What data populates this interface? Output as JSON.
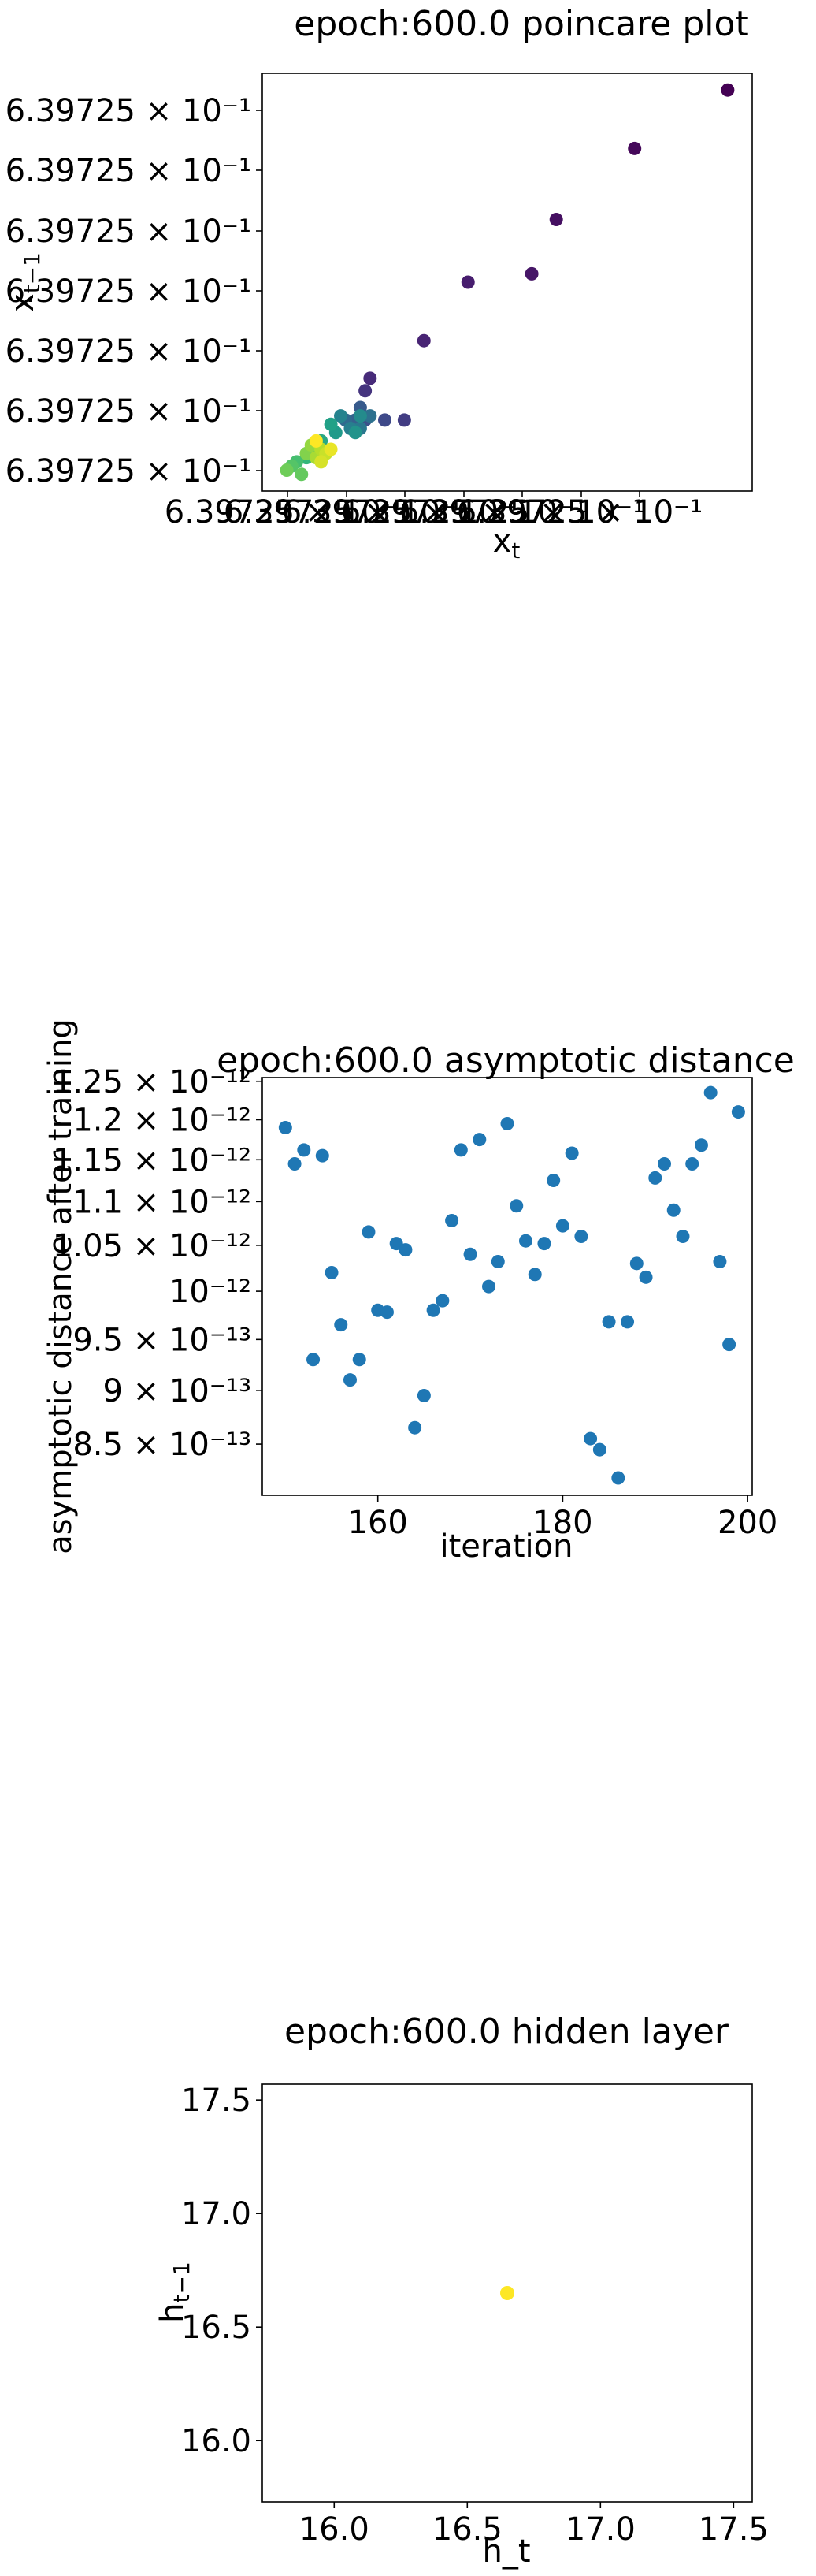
{
  "chart_data": [
    {
      "type": "scatter",
      "title": "epoch:600.0 poincare plot",
      "xlabel": "x_t",
      "ylabel": "x_{t-1}",
      "x_tick_labels": [
        "6.39725 × 10⁻¹",
        "6.39725 × 10⁻¹",
        "6.39725 × 10⁻¹",
        "6.39725 × 10⁻¹",
        "6.39725 × 10⁻¹",
        "6.39725 × 10⁻¹",
        "6.39725 × 10⁻¹"
      ],
      "y_tick_labels": [
        "6.39725 × 10⁻¹",
        "6.39725 × 10⁻¹",
        "6.39725 × 10⁻¹",
        "6.39725 × 10⁻¹",
        "6.39725 × 10⁻¹",
        "6.39725 × 10⁻¹",
        "6.39725 × 10⁻¹"
      ],
      "xlim": [
        0,
        1
      ],
      "ylim": [
        0,
        1
      ],
      "colormap": "viridis",
      "points": [
        {
          "x": 0.95,
          "y": 0.96,
          "c": 0.0
        },
        {
          "x": 0.76,
          "y": 0.82,
          "c": 0.02
        },
        {
          "x": 0.6,
          "y": 0.65,
          "c": 0.04
        },
        {
          "x": 0.55,
          "y": 0.52,
          "c": 0.06
        },
        {
          "x": 0.42,
          "y": 0.5,
          "c": 0.08
        },
        {
          "x": 0.33,
          "y": 0.36,
          "c": 0.1
        },
        {
          "x": 0.22,
          "y": 0.27,
          "c": 0.12
        },
        {
          "x": 0.21,
          "y": 0.24,
          "c": 0.15
        },
        {
          "x": 0.29,
          "y": 0.17,
          "c": 0.18
        },
        {
          "x": 0.25,
          "y": 0.17,
          "c": 0.22
        },
        {
          "x": 0.21,
          "y": 0.17,
          "c": 0.25
        },
        {
          "x": 0.2,
          "y": 0.2,
          "c": 0.28
        },
        {
          "x": 0.19,
          "y": 0.17,
          "c": 0.31
        },
        {
          "x": 0.17,
          "y": 0.17,
          "c": 0.34
        },
        {
          "x": 0.22,
          "y": 0.18,
          "c": 0.37
        },
        {
          "x": 0.2,
          "y": 0.15,
          "c": 0.4
        },
        {
          "x": 0.18,
          "y": 0.15,
          "c": 0.43
        },
        {
          "x": 0.16,
          "y": 0.18,
          "c": 0.45
        },
        {
          "x": 0.2,
          "y": 0.18,
          "c": 0.48
        },
        {
          "x": 0.19,
          "y": 0.14,
          "c": 0.51
        },
        {
          "x": 0.15,
          "y": 0.14,
          "c": 0.54
        },
        {
          "x": 0.14,
          "y": 0.16,
          "c": 0.57
        },
        {
          "x": 0.12,
          "y": 0.12,
          "c": 0.6
        },
        {
          "x": 0.11,
          "y": 0.09,
          "c": 0.63
        },
        {
          "x": 0.09,
          "y": 0.08,
          "c": 0.66
        },
        {
          "x": 0.07,
          "y": 0.07,
          "c": 0.7
        },
        {
          "x": 0.06,
          "y": 0.06,
          "c": 0.73
        },
        {
          "x": 0.08,
          "y": 0.04,
          "c": 0.76
        },
        {
          "x": 0.05,
          "y": 0.05,
          "c": 0.78
        },
        {
          "x": 0.09,
          "y": 0.09,
          "c": 0.81
        },
        {
          "x": 0.1,
          "y": 0.11,
          "c": 0.84
        },
        {
          "x": 0.11,
          "y": 0.08,
          "c": 0.87
        },
        {
          "x": 0.12,
          "y": 0.1,
          "c": 0.89
        },
        {
          "x": 0.13,
          "y": 0.09,
          "c": 0.92
        },
        {
          "x": 0.12,
          "y": 0.07,
          "c": 0.94
        },
        {
          "x": 0.14,
          "y": 0.1,
          "c": 0.97
        },
        {
          "x": 0.11,
          "y": 0.12,
          "c": 1.0
        }
      ]
    },
    {
      "type": "scatter",
      "title": "epoch:600.0 asymptotic distance",
      "xlabel": "iteration",
      "ylabel": "asymptotic distance after training",
      "x_ticks": [
        160,
        180,
        200
      ],
      "x_tick_labels": [
        "160",
        "180",
        "200"
      ],
      "y_ticks": [
        8.5e-13,
        9e-13,
        9.5e-13,
        1e-12,
        1.05e-12,
        1.1e-12,
        1.15e-12,
        1.2e-12,
        1.25e-12
      ],
      "y_tick_labels": [
        "8.5 × 10⁻¹³",
        "9 × 10⁻¹³",
        "9.5 × 10⁻¹³",
        "10⁻¹²",
        "1.05 × 10⁻¹²",
        "1.1 × 10⁻¹²",
        "1.15 × 10⁻¹²",
        "1.2 × 10⁻¹²",
        "1.25 × 10⁻¹²"
      ],
      "y_scale": "log",
      "xlim": [
        147.5,
        200.5
      ],
      "ylim": [
        8.05e-13,
        1.255e-12
      ],
      "color": "#1f77b4",
      "x": [
        150,
        151,
        152,
        153,
        154,
        155,
        156,
        157,
        158,
        159,
        160,
        161,
        162,
        163,
        164,
        165,
        166,
        167,
        168,
        169,
        170,
        171,
        172,
        173,
        174,
        175,
        176,
        177,
        178,
        179,
        180,
        181,
        182,
        183,
        184,
        185,
        186,
        187,
        188,
        189,
        190,
        191,
        192,
        193,
        194,
        195,
        196,
        197,
        198,
        199
      ],
      "y": [
        1.19e-12,
        1.145e-12,
        1.162e-12,
        9.3e-13,
        1.155e-12,
        1.02e-12,
        9.65e-13,
        9.1e-13,
        9.3e-13,
        1.065e-12,
        9.8e-13,
        9.78e-13,
        1.052e-12,
        1.045e-12,
        8.65e-13,
        8.95e-13,
        9.8e-13,
        9.9e-13,
        1.078e-12,
        1.162e-12,
        1.04e-12,
        1.175e-12,
        1.005e-12,
        1.032e-12,
        1.195e-12,
        1.095e-12,
        1.055e-12,
        1.018e-12,
        1.052e-12,
        1.125e-12,
        1.072e-12,
        1.158e-12,
        1.06e-12,
        8.55e-13,
        8.45e-13,
        9.68e-13,
        8.2e-13,
        9.68e-13,
        1.03e-12,
        1.015e-12,
        1.128e-12,
        1.145e-12,
        1.09e-12,
        1.06e-12,
        1.145e-12,
        1.168e-12,
        1.235e-12,
        1.032e-12,
        9.45e-13,
        1.21e-12
      ]
    },
    {
      "type": "scatter",
      "title": "epoch:600.0 hidden layer",
      "xlabel": "h_t",
      "ylabel": "h_{t-1}",
      "x_ticks": [
        16.0,
        16.5,
        17.0,
        17.5
      ],
      "x_tick_labels": [
        "16.0",
        "16.5",
        "17.0",
        "17.5"
      ],
      "y_ticks": [
        16.0,
        16.5,
        17.0,
        17.5
      ],
      "y_tick_labels": [
        "16.0",
        "16.5",
        "17.0",
        "17.5"
      ],
      "xlim": [
        15.73,
        17.57
      ],
      "ylim": [
        15.73,
        17.57
      ],
      "color": "#fde725",
      "x": [
        16.65
      ],
      "y": [
        16.65
      ]
    }
  ]
}
